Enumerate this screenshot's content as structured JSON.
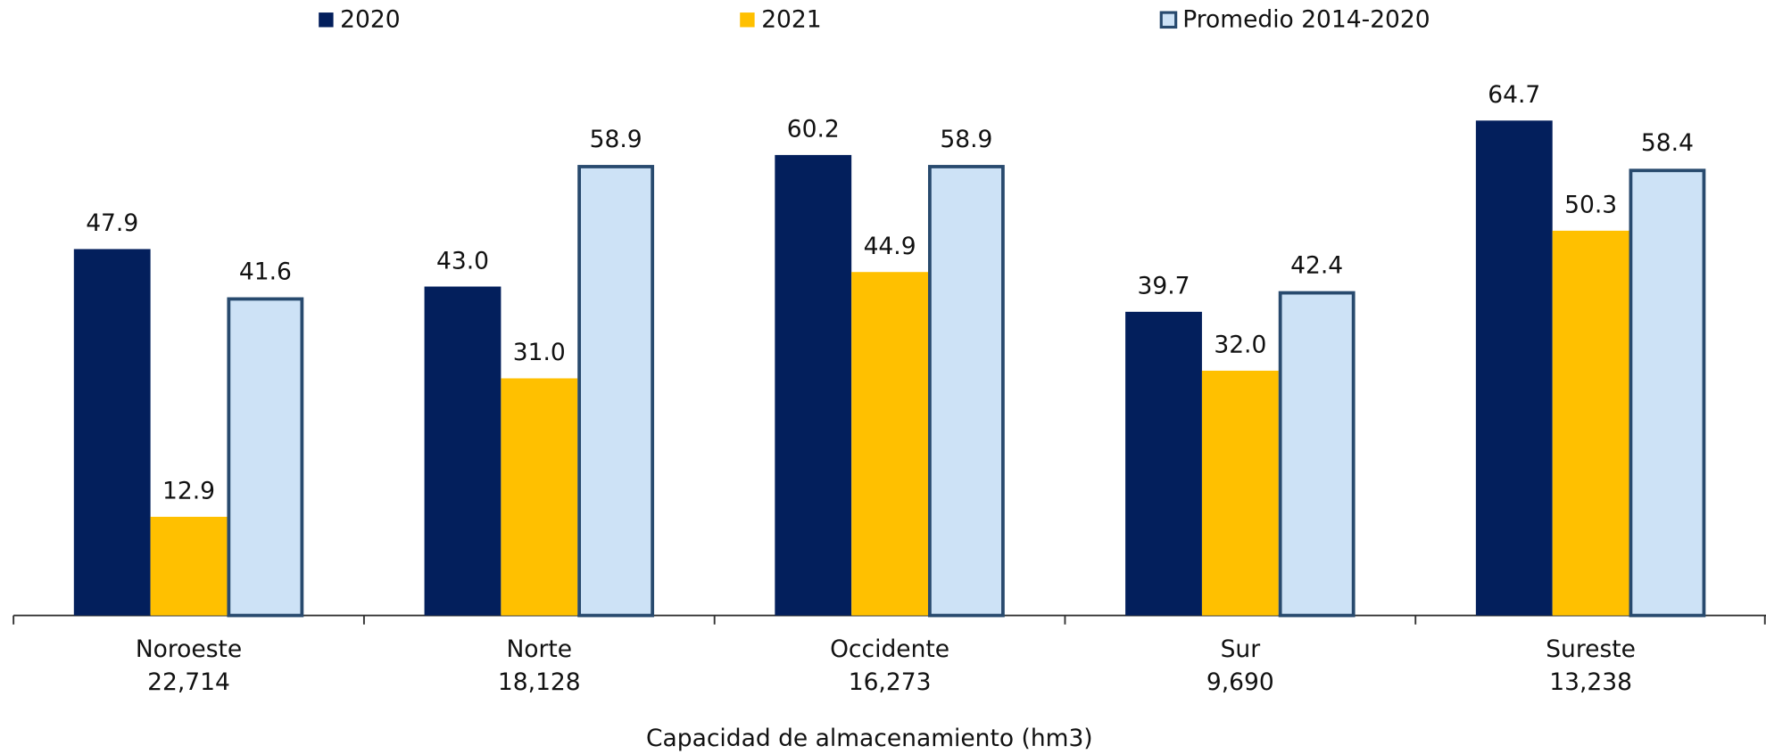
{
  "chart_data": {
    "type": "bar",
    "x_label": "Capacidad de almacenamiento (hm3)",
    "categories": [
      "Noroeste",
      "Norte",
      "Occidente",
      "Sur",
      "Sureste"
    ],
    "capacities": [
      "22,714",
      "18,128",
      "16,273",
      "9,690",
      "13,238"
    ],
    "series": [
      {
        "name": "2020",
        "color": "#031f5c",
        "values": [
          47.9,
          43.0,
          60.2,
          39.7,
          64.7
        ],
        "value_labels": [
          "47.9",
          "43.0",
          "60.2",
          "39.7",
          "64.7"
        ]
      },
      {
        "name": "2021",
        "color": "#ffc000",
        "values": [
          12.9,
          31.0,
          44.9,
          32.0,
          50.3
        ],
        "value_labels": [
          "12.9",
          "31.0",
          "44.9",
          "32.0",
          "50.3"
        ]
      },
      {
        "name": "Promedio 2014-2020",
        "color": "#cde2f6",
        "edgecolor": "#284a6e",
        "values": [
          41.6,
          58.9,
          58.9,
          42.4,
          58.4
        ],
        "value_labels": [
          "41.6",
          "58.9",
          "58.9",
          "42.4",
          "58.4"
        ]
      }
    ],
    "ylim": [
      0,
      80
    ],
    "legend": "top"
  }
}
